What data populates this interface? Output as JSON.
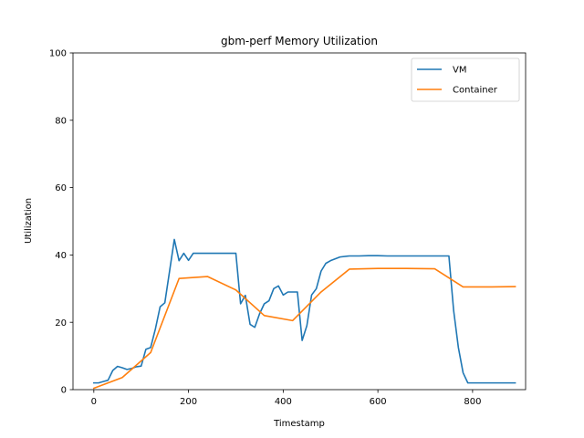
{
  "chart_data": {
    "type": "line",
    "title": "gbm-perf Memory Utilization",
    "xlabel": "Timestamp",
    "ylabel": "Utilization",
    "xlim": [
      -44,
      912
    ],
    "ylim": [
      0,
      100
    ],
    "xticks": [
      0,
      200,
      400,
      600,
      800
    ],
    "yticks": [
      0,
      20,
      40,
      60,
      80,
      100
    ],
    "grid": false,
    "legend_position": "upper-right",
    "series": [
      {
        "name": "VM",
        "color": "#1f77b4",
        "x": [
          0,
          10,
          20,
          30,
          40,
          50,
          60,
          70,
          80,
          90,
          100,
          110,
          120,
          130,
          140,
          150,
          160,
          170,
          180,
          190,
          200,
          210,
          220,
          230,
          240,
          250,
          260,
          270,
          280,
          290,
          300,
          310,
          320,
          330,
          340,
          350,
          360,
          370,
          380,
          390,
          400,
          410,
          420,
          430,
          440,
          450,
          460,
          470,
          480,
          490,
          500,
          520,
          540,
          560,
          580,
          600,
          620,
          640,
          660,
          680,
          700,
          720,
          740,
          750,
          760,
          770,
          780,
          790,
          800,
          820,
          840,
          860,
          880,
          890
        ],
        "y": [
          2,
          2,
          2.4,
          2.8,
          5.7,
          6.9,
          6.5,
          6,
          6.3,
          6.8,
          7,
          12,
          12.5,
          18,
          24.6,
          25.8,
          35.2,
          44.6,
          38.3,
          40.5,
          38.4,
          40.5,
          40.5,
          40.5,
          40.5,
          40.5,
          40.5,
          40.5,
          40.5,
          40.5,
          40.5,
          25.5,
          28,
          19.4,
          18.5,
          22.5,
          25.5,
          26.4,
          30,
          30.8,
          28.1,
          29,
          29,
          29,
          14.6,
          19,
          28.1,
          30,
          35.2,
          37.5,
          38.3,
          39.4,
          39.7,
          39.7,
          39.8,
          39.8,
          39.7,
          39.7,
          39.7,
          39.7,
          39.7,
          39.7,
          39.7,
          39.7,
          23.5,
          12.5,
          5,
          2,
          2,
          2,
          2,
          2,
          2,
          2
        ]
      },
      {
        "name": "Container",
        "color": "#ff7f0e",
        "x": [
          0,
          60,
          120,
          180,
          240,
          300,
          360,
          420,
          480,
          540,
          600,
          660,
          720,
          780,
          840,
          890
        ],
        "y": [
          0.4,
          3.6,
          11,
          33,
          33.6,
          29.6,
          22,
          20.5,
          29,
          35.8,
          36,
          36,
          35.9,
          30.5,
          30.5,
          30.6
        ]
      }
    ]
  }
}
